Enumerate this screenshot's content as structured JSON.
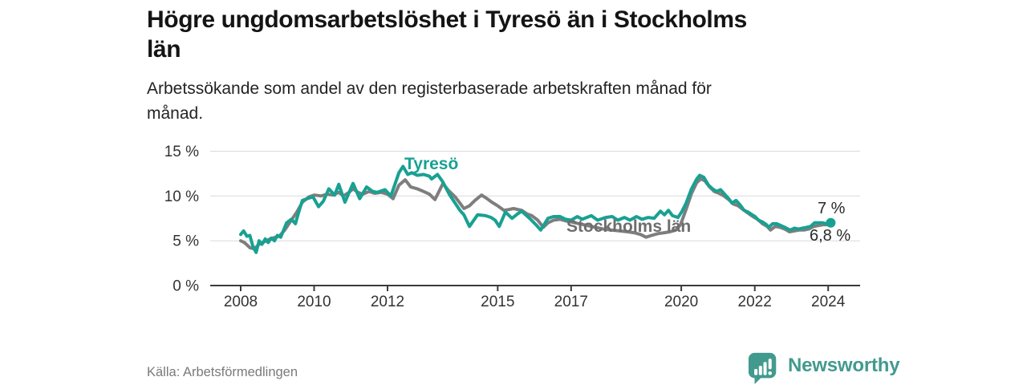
{
  "header": {
    "title_lines": [
      "Högre ungdomsarbetslöshet i Tyresö än i Stockholms",
      "län"
    ],
    "subtitle_lines": [
      "Arbetssökande som andel av den registerbaserade arbetskraften månad för",
      "månad."
    ]
  },
  "footer": {
    "source": "Källa: Arbetsförmedlingen",
    "brand": "Newsworthy",
    "brand_color": "#429a8e"
  },
  "chart_data": {
    "type": "line",
    "title": "Högre ungdomsarbetslöshet i Tyresö än i Stockholms län",
    "subtitle": "Arbetssökande som andel av den registerbaserade arbetskraften månad för månad.",
    "unit": "%",
    "grid": true,
    "legend": "inline-labels",
    "xlim": [
      2007.17,
      2024.87
    ],
    "ylim": [
      0,
      15.49
    ],
    "x_ticks": [
      {
        "year": 2008,
        "label": "2008"
      },
      {
        "year": 2010,
        "label": "2010"
      },
      {
        "year": 2012,
        "label": "2012"
      },
      {
        "year": 2015,
        "label": "2015"
      },
      {
        "year": 2017,
        "label": "2017"
      },
      {
        "year": 2020,
        "label": "2020"
      },
      {
        "year": 2022,
        "label": "2022"
      },
      {
        "year": 2024,
        "label": "2024"
      }
    ],
    "y_ticks": [
      {
        "value": 0,
        "label": "0 %"
      },
      {
        "value": 5,
        "label": "5 %"
      },
      {
        "value": 10,
        "label": "10 %"
      },
      {
        "value": 15,
        "label": "15 %"
      }
    ],
    "axis_color": "#3b3b3b",
    "grid_color": "#d9d9d9",
    "series": [
      {
        "name": "Tyresö",
        "color": "#18a192",
        "label_color": "#18a192",
        "points": [
          [
            2008.0,
            5.7
          ],
          [
            2008.08,
            6.1
          ],
          [
            2008.17,
            5.5
          ],
          [
            2008.25,
            5.6
          ],
          [
            2008.33,
            4.4
          ],
          [
            2008.42,
            3.7
          ],
          [
            2008.5,
            5.0
          ],
          [
            2008.58,
            4.6
          ],
          [
            2008.67,
            5.2
          ],
          [
            2008.75,
            4.8
          ],
          [
            2008.83,
            5.3
          ],
          [
            2008.92,
            5.0
          ],
          [
            2009.0,
            5.6
          ],
          [
            2009.09,
            5.4
          ],
          [
            2009.25,
            7.0
          ],
          [
            2009.38,
            7.4
          ],
          [
            2009.49,
            6.9
          ],
          [
            2009.58,
            8.2
          ],
          [
            2009.68,
            9.5
          ],
          [
            2009.81,
            9.7
          ],
          [
            2009.97,
            9.9
          ],
          [
            2010.12,
            8.8
          ],
          [
            2010.25,
            9.4
          ],
          [
            2010.4,
            10.8
          ],
          [
            2010.56,
            10.1
          ],
          [
            2010.67,
            11.3
          ],
          [
            2010.84,
            9.3
          ],
          [
            2011.06,
            11.4
          ],
          [
            2011.24,
            9.7
          ],
          [
            2011.43,
            11.0
          ],
          [
            2011.6,
            10.5
          ],
          [
            2011.72,
            10.4
          ],
          [
            2011.93,
            10.7
          ],
          [
            2012.09,
            10.0
          ],
          [
            2012.31,
            12.6
          ],
          [
            2012.42,
            13.3
          ],
          [
            2012.55,
            12.4
          ],
          [
            2012.66,
            12.6
          ],
          [
            2012.81,
            12.3
          ],
          [
            2012.98,
            12.4
          ],
          [
            2013.14,
            12.2
          ],
          [
            2013.2,
            11.9
          ],
          [
            2013.36,
            12.4
          ],
          [
            2013.5,
            11.6
          ],
          [
            2013.68,
            10.2
          ],
          [
            2013.84,
            9.2
          ],
          [
            2013.97,
            8.4
          ],
          [
            2014.08,
            7.9
          ],
          [
            2014.23,
            6.6
          ],
          [
            2014.45,
            7.9
          ],
          [
            2014.67,
            7.8
          ],
          [
            2014.82,
            7.6
          ],
          [
            2014.93,
            7.3
          ],
          [
            2015.04,
            6.6
          ],
          [
            2015.21,
            8.2
          ],
          [
            2015.39,
            7.5
          ],
          [
            2015.54,
            8.0
          ],
          [
            2015.65,
            8.3
          ],
          [
            2015.87,
            7.5
          ],
          [
            2016.04,
            6.8
          ],
          [
            2016.17,
            6.2
          ],
          [
            2016.37,
            7.5
          ],
          [
            2016.52,
            7.7
          ],
          [
            2016.7,
            7.7
          ],
          [
            2016.85,
            7.4
          ],
          [
            2017.0,
            7.3
          ],
          [
            2017.17,
            7.7
          ],
          [
            2017.3,
            7.4
          ],
          [
            2017.55,
            7.8
          ],
          [
            2017.72,
            7.3
          ],
          [
            2017.94,
            7.6
          ],
          [
            2018.12,
            7.7
          ],
          [
            2018.27,
            7.3
          ],
          [
            2018.45,
            7.6
          ],
          [
            2018.6,
            7.3
          ],
          [
            2018.78,
            7.7
          ],
          [
            2018.93,
            7.4
          ],
          [
            2019.1,
            7.6
          ],
          [
            2019.26,
            7.5
          ],
          [
            2019.43,
            8.3
          ],
          [
            2019.54,
            7.9
          ],
          [
            2019.65,
            8.4
          ],
          [
            2019.76,
            7.8
          ],
          [
            2019.91,
            7.6
          ],
          [
            2020.02,
            8.3
          ],
          [
            2020.13,
            9.2
          ],
          [
            2020.28,
            10.8
          ],
          [
            2020.42,
            11.9
          ],
          [
            2020.5,
            12.3
          ],
          [
            2020.61,
            12.1
          ],
          [
            2020.74,
            11.2
          ],
          [
            2020.85,
            10.8
          ],
          [
            2020.96,
            10.5
          ],
          [
            2021.07,
            10.7
          ],
          [
            2021.18,
            10.2
          ],
          [
            2021.29,
            9.7
          ],
          [
            2021.38,
            9.2
          ],
          [
            2021.49,
            9.5
          ],
          [
            2021.6,
            9.0
          ],
          [
            2021.71,
            8.4
          ],
          [
            2021.82,
            8.2
          ],
          [
            2021.93,
            7.9
          ],
          [
            2022.01,
            7.7
          ],
          [
            2022.1,
            7.3
          ],
          [
            2022.21,
            7.1
          ],
          [
            2022.32,
            6.8
          ],
          [
            2022.38,
            6.5
          ],
          [
            2022.49,
            6.9
          ],
          [
            2022.6,
            6.9
          ],
          [
            2022.71,
            6.7
          ],
          [
            2022.82,
            6.5
          ],
          [
            2022.91,
            6.3
          ],
          [
            2022.97,
            6.2
          ],
          [
            2023.08,
            6.4
          ],
          [
            2023.19,
            6.3
          ],
          [
            2023.3,
            6.4
          ],
          [
            2023.41,
            6.5
          ],
          [
            2023.52,
            6.6
          ],
          [
            2023.63,
            7.0
          ],
          [
            2023.74,
            7.0
          ],
          [
            2023.85,
            7.0
          ],
          [
            2023.96,
            6.9
          ],
          [
            2024.07,
            7.0
          ]
        ]
      },
      {
        "name": "Stockholms län",
        "color": "#7e7e7e",
        "label_color": "#6e6e6e",
        "points": [
          [
            2008.0,
            5.0
          ],
          [
            2008.1,
            4.8
          ],
          [
            2008.26,
            4.2
          ],
          [
            2008.37,
            4.1
          ],
          [
            2008.5,
            4.6
          ],
          [
            2008.65,
            4.9
          ],
          [
            2008.8,
            5.2
          ],
          [
            2008.95,
            5.4
          ],
          [
            2009.05,
            5.5
          ],
          [
            2009.2,
            6.2
          ],
          [
            2009.38,
            7.3
          ],
          [
            2009.53,
            8.2
          ],
          [
            2009.68,
            9.3
          ],
          [
            2009.86,
            9.9
          ],
          [
            2010.01,
            10.1
          ],
          [
            2010.19,
            10.0
          ],
          [
            2010.36,
            10.2
          ],
          [
            2010.51,
            10.1
          ],
          [
            2010.67,
            10.4
          ],
          [
            2010.8,
            10.0
          ],
          [
            2010.95,
            10.4
          ],
          [
            2011.06,
            10.8
          ],
          [
            2011.19,
            10.4
          ],
          [
            2011.32,
            10.2
          ],
          [
            2011.5,
            10.5
          ],
          [
            2011.65,
            10.3
          ],
          [
            2011.83,
            10.4
          ],
          [
            2012.0,
            10.2
          ],
          [
            2012.15,
            9.7
          ],
          [
            2012.31,
            11.2
          ],
          [
            2012.48,
            11.8
          ],
          [
            2012.63,
            11.0
          ],
          [
            2012.81,
            10.8
          ],
          [
            2012.98,
            10.5
          ],
          [
            2013.14,
            10.2
          ],
          [
            2013.29,
            9.6
          ],
          [
            2013.51,
            11.4
          ],
          [
            2013.64,
            10.7
          ],
          [
            2013.84,
            9.9
          ],
          [
            2013.97,
            9.2
          ],
          [
            2014.08,
            8.6
          ],
          [
            2014.23,
            8.9
          ],
          [
            2014.38,
            9.5
          ],
          [
            2014.56,
            10.1
          ],
          [
            2014.71,
            9.7
          ],
          [
            2014.84,
            9.3
          ],
          [
            2015.0,
            8.9
          ],
          [
            2015.17,
            8.4
          ],
          [
            2015.32,
            8.5
          ],
          [
            2015.43,
            8.6
          ],
          [
            2015.65,
            8.4
          ],
          [
            2015.8,
            8.0
          ],
          [
            2015.93,
            7.8
          ],
          [
            2016.09,
            7.3
          ],
          [
            2016.24,
            6.5
          ],
          [
            2016.37,
            7.0
          ],
          [
            2016.52,
            7.3
          ],
          [
            2016.7,
            7.4
          ],
          [
            2016.87,
            7.2
          ],
          [
            2017.0,
            7.1
          ],
          [
            2017.22,
            6.9
          ],
          [
            2017.44,
            6.7
          ],
          [
            2017.66,
            6.5
          ],
          [
            2017.88,
            6.3
          ],
          [
            2018.1,
            6.2
          ],
          [
            2018.32,
            6.1
          ],
          [
            2018.54,
            6.0
          ],
          [
            2018.71,
            5.9
          ],
          [
            2018.89,
            5.7
          ],
          [
            2019.04,
            5.4
          ],
          [
            2019.19,
            5.6
          ],
          [
            2019.37,
            5.8
          ],
          [
            2019.54,
            5.9
          ],
          [
            2019.69,
            6.0
          ],
          [
            2019.85,
            6.2
          ],
          [
            2019.98,
            6.8
          ],
          [
            2020.13,
            8.5
          ],
          [
            2020.28,
            10.3
          ],
          [
            2020.42,
            11.5
          ],
          [
            2020.53,
            11.9
          ],
          [
            2020.64,
            11.7
          ],
          [
            2020.77,
            11.0
          ],
          [
            2020.9,
            10.5
          ],
          [
            2021.03,
            10.3
          ],
          [
            2021.16,
            10.0
          ],
          [
            2021.29,
            9.6
          ],
          [
            2021.42,
            9.1
          ],
          [
            2021.55,
            8.9
          ],
          [
            2021.68,
            8.5
          ],
          [
            2021.81,
            8.1
          ],
          [
            2021.95,
            7.7
          ],
          [
            2022.08,
            7.4
          ],
          [
            2022.21,
            6.9
          ],
          [
            2022.34,
            6.6
          ],
          [
            2022.43,
            6.2
          ],
          [
            2022.56,
            6.6
          ],
          [
            2022.69,
            6.5
          ],
          [
            2022.82,
            6.3
          ],
          [
            2022.95,
            6.0
          ],
          [
            2023.08,
            6.1
          ],
          [
            2023.21,
            6.2
          ],
          [
            2023.34,
            6.2
          ],
          [
            2023.47,
            6.3
          ],
          [
            2023.61,
            6.6
          ],
          [
            2023.74,
            6.7
          ],
          [
            2023.87,
            6.8
          ],
          [
            2023.98,
            6.8
          ],
          [
            2024.07,
            6.8
          ]
        ]
      }
    ],
    "end_labels": [
      {
        "series": "Tyresö",
        "label": "7 %"
      },
      {
        "series": "Stockholms län",
        "label": "6,8 %"
      }
    ],
    "end_dot": {
      "year": 2024.07,
      "value": 7.0
    }
  }
}
